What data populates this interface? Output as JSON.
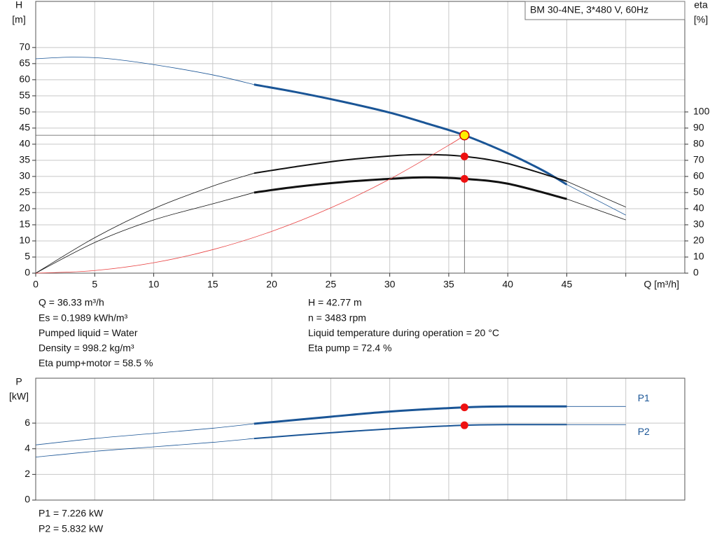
{
  "chart_data": [
    {
      "type": "line",
      "title": "BM 30-4NE, 3*480 V, 60Hz",
      "ylabel": [
        "H",
        "[m]"
      ],
      "y2label": [
        "eta",
        "[%]"
      ],
      "xlabel": "Q [m³/h]",
      "xlim": [
        0,
        55
      ],
      "ylim": [
        0,
        84.3
      ],
      "y2lim": [
        0,
        168.6
      ],
      "xticks": [
        0,
        5,
        10,
        15,
        20,
        25,
        30,
        35,
        40,
        45,
        {
          "value": 50,
          "label": null
        }
      ],
      "yticks": [
        0,
        5,
        10,
        15,
        20,
        25,
        30,
        35,
        40,
        45,
        50,
        55,
        60,
        65,
        70
      ],
      "y2ticks": [
        0,
        10,
        20,
        30,
        40,
        50,
        60,
        70,
        80,
        90,
        100
      ],
      "grid": true,
      "series": [
        {
          "color": "#1a5596",
          "width": 0.8,
          "x": [
            0,
            3,
            6,
            10,
            15,
            18.5
          ],
          "values": [
            66.5,
            67,
            66.6,
            64.7,
            61.5,
            58.5
          ]
        },
        {
          "color": "#1a5596",
          "width": 3,
          "x": [
            18.5,
            22,
            26,
            30,
            33,
            36.33,
            40,
            43,
            45
          ],
          "values": [
            58.5,
            56.2,
            53.2,
            49.8,
            46.6,
            42.77,
            37.2,
            31.8,
            27.5
          ]
        },
        {
          "color": "#1a5596",
          "width": 0.8,
          "x": [
            45,
            50
          ],
          "values": [
            27.5,
            18
          ]
        },
        {
          "color": "#111111",
          "width": 0.8,
          "axis": "y2",
          "x": [
            0,
            5,
            10,
            15,
            18.5
          ],
          "values": [
            0,
            22,
            40,
            54,
            62
          ]
        },
        {
          "color": "#111111",
          "width": 2,
          "axis": "y2",
          "x": [
            18.5,
            22,
            26,
            30,
            33,
            36.33,
            40,
            45
          ],
          "values": [
            62,
            66,
            70,
            72.7,
            73.6,
            72.4,
            68,
            57
          ]
        },
        {
          "color": "#111111",
          "width": 0.8,
          "axis": "y2",
          "x": [
            45,
            50
          ],
          "values": [
            57,
            41
          ]
        },
        {
          "color": "#111111",
          "width": 0.8,
          "axis": "y2",
          "x": [
            0,
            5,
            10,
            15,
            18.5
          ],
          "values": [
            0,
            19,
            33,
            43,
            50
          ]
        },
        {
          "color": "#111111",
          "width": 3,
          "axis": "y2",
          "x": [
            18.5,
            22,
            26,
            30,
            33,
            36.33,
            40,
            45
          ],
          "values": [
            50,
            53.5,
            56.5,
            58.5,
            59.4,
            58.5,
            55.5,
            46
          ]
        },
        {
          "color": "#111111",
          "width": 0.8,
          "axis": "y2",
          "x": [
            45,
            50
          ],
          "values": [
            46,
            33
          ]
        },
        {
          "color": "#e84040",
          "width": 0.8,
          "x": [
            0,
            5,
            10,
            15,
            20,
            25,
            30,
            35,
            36.33
          ],
          "values": [
            0,
            0.81,
            3.24,
            7.29,
            12.96,
            20.25,
            29.16,
            39.69,
            42.77
          ]
        }
      ],
      "duty_point": {
        "x": 36.33,
        "y": 42.77,
        "color": "#ffee00"
      },
      "duty_markers": [
        {
          "x": 36.33,
          "y": 72.4,
          "axis": "y2",
          "color": "#ee1111"
        },
        {
          "x": 36.33,
          "y": 58.5,
          "axis": "y2",
          "color": "#ee1111"
        }
      ]
    },
    {
      "type": "line",
      "ylabel": [
        "P",
        "[kW]"
      ],
      "xlim": [
        0,
        55
      ],
      "ylim": [
        0,
        9.5
      ],
      "xticks": [
        0,
        5,
        10,
        15,
        20,
        25,
        30,
        35,
        40,
        45,
        50
      ],
      "xtick_labels": false,
      "yticks": [
        0,
        2,
        4,
        6
      ],
      "grid": true,
      "series": [
        {
          "color": "#1a5596",
          "width": 0.8,
          "x": [
            0,
            5,
            10,
            15,
            18.5
          ],
          "values": [
            4.3,
            4.8,
            5.2,
            5.6,
            5.95
          ]
        },
        {
          "color": "#1a5596",
          "width": 3,
          "x": [
            18.5,
            25,
            30,
            36.33,
            40,
            45
          ],
          "values": [
            5.95,
            6.5,
            6.9,
            7.226,
            7.3,
            7.3
          ]
        },
        {
          "name": "P1",
          "color": "#1a5596",
          "width": 0.8,
          "x": [
            45,
            50
          ],
          "values": [
            7.3,
            7.3
          ]
        },
        {
          "color": "#1a5596",
          "width": 0.8,
          "x": [
            0,
            5,
            10,
            15,
            18.5
          ],
          "values": [
            3.35,
            3.8,
            4.15,
            4.5,
            4.8
          ]
        },
        {
          "color": "#1a5596",
          "width": 2,
          "x": [
            18.5,
            25,
            30,
            36.33,
            40,
            45
          ],
          "values": [
            4.8,
            5.25,
            5.55,
            5.832,
            5.88,
            5.88
          ]
        },
        {
          "name": "P2",
          "color": "#1a5596",
          "width": 0.8,
          "x": [
            45,
            50
          ],
          "values": [
            5.88,
            5.88
          ]
        }
      ],
      "duty_markers": [
        {
          "x": 36.33,
          "y": 7.226,
          "color": "#ee1111"
        },
        {
          "x": 36.33,
          "y": 5.832,
          "color": "#ee1111"
        }
      ]
    }
  ],
  "info": {
    "left": [
      "Q = 36.33 m³/h",
      "Es = 0.1989 kWh/m³",
      "Pumped liquid = Water",
      "Density = 998.2 kg/m³",
      "Eta pump+motor = 58.5 %"
    ],
    "right": [
      "H = 42.77 m",
      "n = 3483 rpm",
      "Liquid temperature during operation = 20 °C",
      "Eta pump = 72.4 %"
    ]
  },
  "power_info": [
    "P1 = 7.226 kW",
    "P2 = 5.832 kW"
  ]
}
